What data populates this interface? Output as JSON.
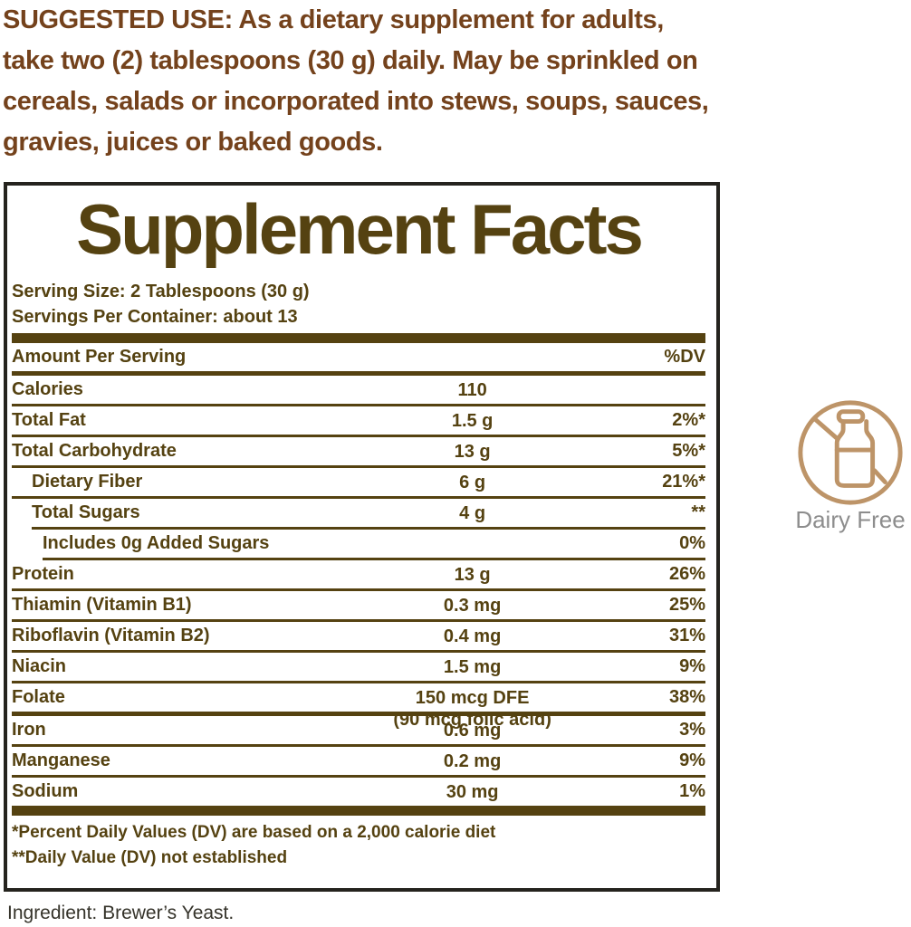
{
  "suggested_use": {
    "text": "SUGGESTED USE: As a dietary supplement for adults,\ntake two (2) tablespoons (30 g) daily. May be sprinkled on\ncereals, salads or incorporated into stews, soups, sauces,\ngravies, juices or baked goods."
  },
  "panel": {
    "title": "Supplement Facts",
    "serving_size": "Serving Size: 2 Tablespoons (30 g)",
    "servings_per_container": "Servings Per Container: about 13",
    "header": {
      "amount_label": "Amount Per Serving",
      "dv_label": "%DV"
    },
    "rows": [
      {
        "label": "Calories",
        "amount": "110",
        "dv": "",
        "indent": 0,
        "sep": "full"
      },
      {
        "label": "Total Fat",
        "amount": "1.5 g",
        "dv": "2%*",
        "indent": 0,
        "sep": "full"
      },
      {
        "label": "Total Carbohydrate",
        "amount": "13 g",
        "dv": "5%*",
        "indent": 0,
        "sep": "full"
      },
      {
        "label": "Dietary Fiber",
        "amount": "6 g",
        "dv": "21%*",
        "indent": 1,
        "sep": "full"
      },
      {
        "label": "Total Sugars",
        "amount": "4 g",
        "dv": "**",
        "indent": 1,
        "sep": "indent1"
      },
      {
        "label": "Includes 0g Added Sugars",
        "amount": "",
        "dv": "0%",
        "indent": 2,
        "sep": "indent2"
      },
      {
        "label": "Protein",
        "amount": "13 g",
        "dv": "26%",
        "indent": 0,
        "sep": "full"
      },
      {
        "label": "Thiamin (Vitamin B1)",
        "amount": "0.3 mg",
        "dv": "25%",
        "indent": 0,
        "sep": "full"
      },
      {
        "label": "Riboflavin (Vitamin B2)",
        "amount": "0.4 mg",
        "dv": "31%",
        "indent": 0,
        "sep": "full"
      },
      {
        "label": "Niacin",
        "amount": "1.5 mg",
        "dv": "9%",
        "indent": 0,
        "sep": "full"
      },
      {
        "label": "Folate",
        "amount": "150 mcg DFE",
        "amount2": "(90 mcg folic acid)",
        "dv": "38%",
        "indent": 0,
        "sep": "medium"
      },
      {
        "label": "Iron",
        "amount": "0.6 mg",
        "dv": "3%",
        "indent": 0,
        "sep": "full"
      },
      {
        "label": "Manganese",
        "amount": "0.2 mg",
        "dv": "9%",
        "indent": 0,
        "sep": "full"
      },
      {
        "label": "Sodium",
        "amount": "30 mg",
        "dv": "1%",
        "indent": 0,
        "sep": "none"
      }
    ],
    "footnotes": [
      "*Percent Daily Values (DV) are based on a 2,000 calorie diet",
      "**Daily Value (DV) not established"
    ]
  },
  "ingredient_line": "Ingredient: Brewer’s Yeast.",
  "badge": {
    "label": "Dairy Free",
    "icon": "dairy-free-icon"
  },
  "colors": {
    "suggested_use_text": "#74421c",
    "panel_text": "#554211",
    "panel_border": "#25231e",
    "badge_icon": "#bd9468",
    "badge_label": "#8d8d8d",
    "ingredient_text": "#35332a"
  }
}
